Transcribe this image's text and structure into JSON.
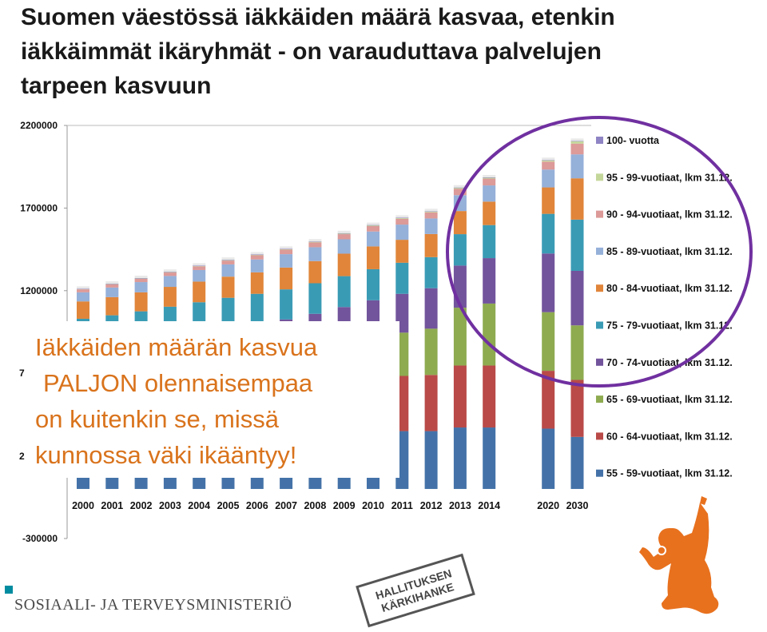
{
  "slide": {
    "title_lines": [
      "Suomen väestössä iäkkäiden määrä kasvaa, etenkin",
      "iäkkäimmät ikäryhmät - on varauduttava palvelujen",
      "tarpeen kasvuun"
    ],
    "overlay_lines": [
      "Iäkkäiden määrän kasvua",
      "PALJON olennaisempaa",
      "on kuitenkin se, missä",
      "kunnossa väki ikääntyy!"
    ],
    "stray_ticks": [
      "7",
      "2"
    ],
    "footer_ministry": "SOSIAALI- JA TERVEYSMINISTERIÖ",
    "badge_lines": [
      "HALLITUKSEN",
      "KÄRKIHANKE"
    ]
  },
  "chart_data": {
    "type": "bar",
    "stacked": true,
    "categories": [
      "2000",
      "2001",
      "2002",
      "2003",
      "2004",
      "2005",
      "2006",
      "2007",
      "2008",
      "2009",
      "2010",
      "2011",
      "2012",
      "2013",
      "2014",
      "2020",
      "2030"
    ],
    "yticks": [
      -300000,
      1200000,
      1700000,
      2200000
    ],
    "ylim": [
      -300000,
      2200000
    ],
    "legend_position": "right",
    "series": [
      {
        "name": "55 - 59-vuotiaat, lkm 31.12.",
        "color": "#4472a8",
        "values": [
          250000,
          262000,
          272000,
          285000,
          296000,
          306000,
          316000,
          325000,
          334000,
          342000,
          347000,
          350000,
          350000,
          372000,
          372000,
          365000,
          315000
        ]
      },
      {
        "name": "60 - 64-vuotiaat, lkm 31.12.",
        "color": "#b94a48",
        "values": [
          235000,
          237000,
          240000,
          244000,
          250000,
          256000,
          262000,
          271000,
          283000,
          300000,
          318000,
          334000,
          340000,
          375000,
          375000,
          350000,
          345000
        ]
      },
      {
        "name": "65 - 69-vuotiaat, lkm 31.12.",
        "color": "#8eab50",
        "values": [
          210000,
          212000,
          214000,
          216000,
          218000,
          222000,
          225000,
          230000,
          237000,
          244000,
          252000,
          262000,
          280000,
          350000,
          375000,
          355000,
          330000
        ]
      },
      {
        "name": "70 - 74-vuotiaat, lkm 31.12.",
        "color": "#72549c",
        "values": [
          180000,
          182000,
          185000,
          188000,
          191000,
          195000,
          198000,
          200000,
          206000,
          215000,
          225000,
          235000,
          245000,
          255000,
          275000,
          355000,
          330000
        ]
      },
      {
        "name": "75 - 79-vuotiaat, lkm 31.12.",
        "color": "#3a9bb5",
        "values": [
          155000,
          158000,
          164000,
          170000,
          175000,
          178000,
          180000,
          182000,
          185000,
          187000,
          188000,
          188000,
          188000,
          190000,
          200000,
          240000,
          310000
        ]
      },
      {
        "name": "80 - 84-vuotiaat, lkm 31.12.",
        "color": "#e0853a",
        "values": [
          105000,
          110000,
          115000,
          120000,
          125000,
          128000,
          130000,
          132000,
          134000,
          136000,
          138000,
          139000,
          140000,
          140000,
          142000,
          160000,
          250000
        ]
      },
      {
        "name": "85 - 89-vuotiaat, lkm 31.12.",
        "color": "#95b0d9",
        "values": [
          55000,
          58000,
          62000,
          66000,
          70000,
          74000,
          78000,
          81000,
          84000,
          87000,
          90000,
          92000,
          94000,
          96000,
          98000,
          108000,
          145000
        ]
      },
      {
        "name": "90 - 94-vuotiaat, lkm 31.12.",
        "color": "#dc9a98",
        "values": [
          18000,
          19000,
          20000,
          21000,
          22000,
          23000,
          25000,
          27000,
          29000,
          31000,
          33000,
          35000,
          37000,
          39000,
          41000,
          48000,
          65000
        ]
      },
      {
        "name": "95 - 99-vuotiaat, lkm 31.12.",
        "color": "#c4d79b",
        "values": [
          3500,
          3700,
          3900,
          4100,
          4300,
          4500,
          4700,
          5000,
          5300,
          5600,
          5900,
          6200,
          6500,
          6800,
          7100,
          9000,
          15000
        ]
      },
      {
        "name": "100- vuotta",
        "color": "#8f84c4",
        "values": [
          300,
          320,
          340,
          360,
          380,
          400,
          420,
          450,
          480,
          510,
          540,
          570,
          600,
          630,
          660,
          900,
          1500
        ]
      }
    ]
  }
}
